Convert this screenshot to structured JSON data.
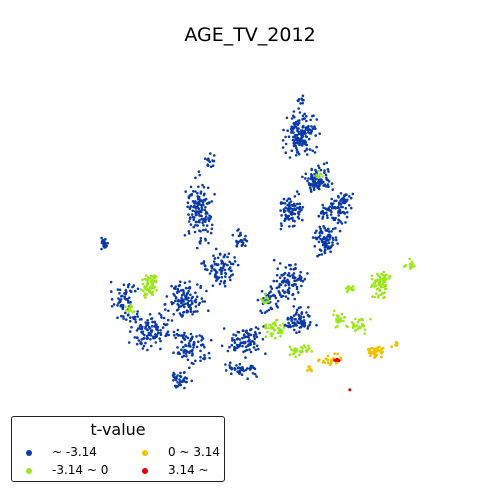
{
  "title": "AGE_TV_2012",
  "legend": {
    "title": "t-value",
    "items": [
      {
        "label": "~ -3.14",
        "color": "#0a3aa8"
      },
      {
        "label": "-3.14 ~ 0",
        "color": "#9be81a"
      },
      {
        "label": "0 ~ 3.14",
        "color": "#f2c200"
      },
      {
        "label": "3.14 ~",
        "color": "#e00000"
      }
    ]
  },
  "colors": {
    "class_1": "#0a3aa8",
    "class_2": "#9be81a",
    "class_3": "#f2c200",
    "class_4": "#e00000"
  }
}
